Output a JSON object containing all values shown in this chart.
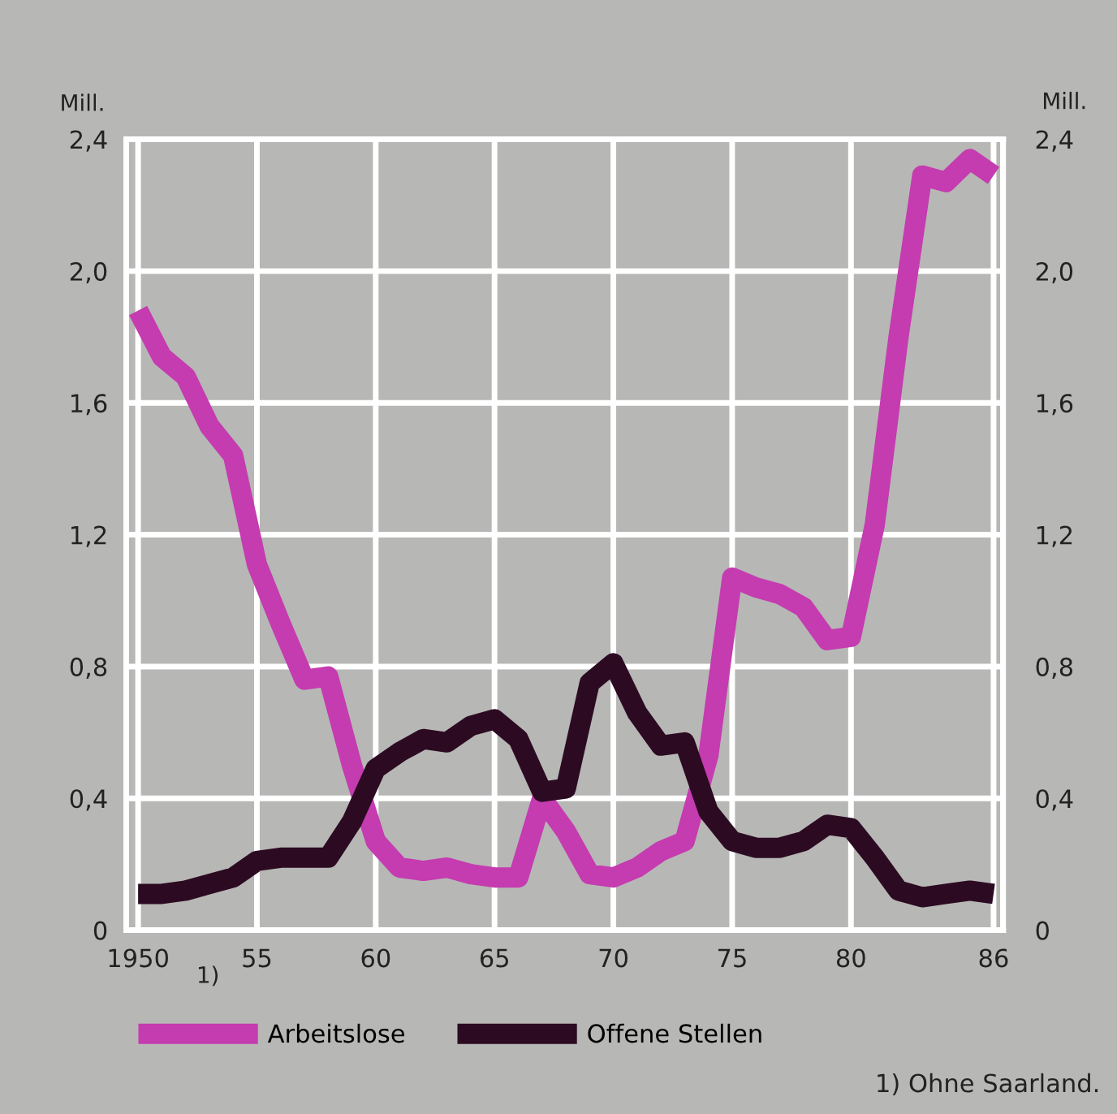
{
  "chart_data": {
    "type": "line",
    "ylabel": "Mill.",
    "y2label": "Mill.",
    "x": [
      1950,
      1951,
      1952,
      1953,
      1954,
      1955,
      1956,
      1957,
      1958,
      1959,
      1960,
      1961,
      1962,
      1963,
      1964,
      1965,
      1966,
      1967,
      1968,
      1969,
      1970,
      1971,
      1972,
      1973,
      1974,
      1975,
      1976,
      1977,
      1978,
      1979,
      1980,
      1981,
      1982,
      1983,
      1984,
      1985,
      1986
    ],
    "series": [
      {
        "name": "Arbeitslose",
        "color": "#c53bb0",
        "values": [
          1.88,
          1.74,
          1.68,
          1.53,
          1.44,
          1.11,
          0.93,
          0.76,
          0.77,
          0.5,
          0.27,
          0.19,
          0.18,
          0.19,
          0.17,
          0.16,
          0.16,
          0.4,
          0.3,
          0.17,
          0.16,
          0.19,
          0.24,
          0.27,
          0.53,
          1.07,
          1.04,
          1.02,
          0.98,
          0.88,
          0.89,
          1.23,
          1.8,
          2.29,
          2.27,
          2.34,
          2.29
        ]
      },
      {
        "name": "Offene Stellen",
        "color": "#2c0b22",
        "values": [
          0.11,
          0.11,
          0.12,
          0.14,
          0.16,
          0.21,
          0.22,
          0.22,
          0.22,
          0.33,
          0.49,
          0.54,
          0.58,
          0.57,
          0.62,
          0.64,
          0.58,
          0.42,
          0.43,
          0.75,
          0.81,
          0.66,
          0.56,
          0.57,
          0.36,
          0.27,
          0.25,
          0.25,
          0.27,
          0.32,
          0.31,
          0.22,
          0.12,
          0.1,
          0.11,
          0.12,
          0.11
        ]
      }
    ],
    "xlim": [
      1949.5,
      1986.4
    ],
    "xticks": [
      1950,
      {
        "value": 1955,
        "label": "55"
      },
      {
        "value": 1960,
        "label": "60"
      },
      {
        "value": 1965,
        "label": "65"
      },
      {
        "value": 1970,
        "label": "70"
      },
      {
        "value": 1975,
        "label": "75"
      },
      {
        "value": 1980,
        "label": "80"
      },
      {
        "value": 1986,
        "label": "86"
      }
    ],
    "ylim": [
      0,
      2.4
    ],
    "yticks": [
      0,
      {
        "value": 0.4,
        "label": "0,4"
      },
      {
        "value": 0.8,
        "label": "0,8"
      },
      {
        "value": 1.2,
        "label": "1,2"
      },
      {
        "value": 1.6,
        "label": "1,6"
      },
      {
        "value": 2.0,
        "label": "2,0"
      },
      {
        "value": 2.4,
        "label": "2,4"
      }
    ],
    "y2lim": [
      0,
      2.4
    ],
    "y2ticks": [
      0,
      {
        "value": 0.4,
        "label": "0,4"
      },
      {
        "value": 0.8,
        "label": "0,8"
      },
      {
        "value": 1.2,
        "label": "1,2"
      },
      {
        "value": 1.6,
        "label": "1,6"
      },
      {
        "value": 2.0,
        "label": "2,0"
      },
      {
        "value": 2.4,
        "label": "2,4"
      }
    ],
    "grid": true,
    "legend": "bottom",
    "line_style": "solid",
    "marker": "none",
    "annotations": [
      "1)",
      "1) Ohne Saarland."
    ]
  }
}
